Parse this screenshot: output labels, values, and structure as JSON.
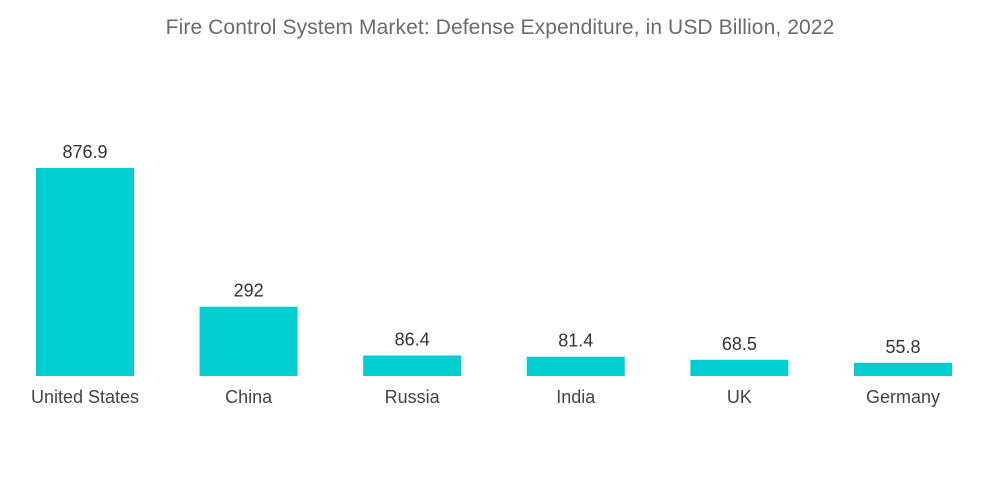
{
  "chart_data": {
    "type": "bar",
    "title": "Fire Control System Market: Defense Expenditure, in USD Billion, 2022",
    "xlabel": "",
    "ylabel": "",
    "categories": [
      "United States",
      "China",
      "Russia",
      "India",
      "UK",
      "Germany"
    ],
    "values": [
      876.9,
      292,
      86.4,
      81.4,
      68.5,
      55.8
    ],
    "value_labels": [
      "876.9",
      "292",
      "86.4",
      "81.4",
      "68.5",
      "55.8"
    ],
    "ylim": [
      0,
      876.9
    ],
    "grid": false,
    "legend": "none",
    "bar_color": "#00ced1"
  }
}
